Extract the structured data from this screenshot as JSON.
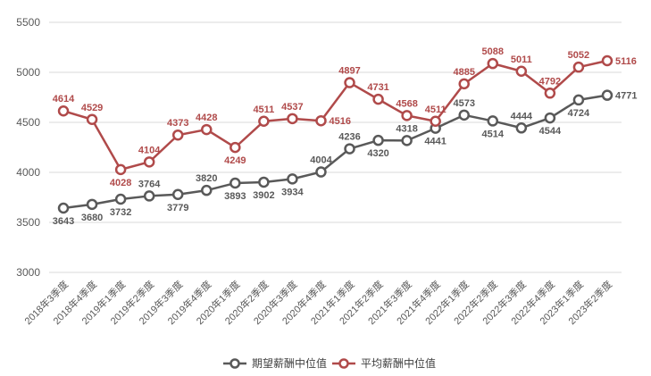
{
  "chart_data": {
    "type": "line",
    "categories": [
      "2018年3季度",
      "2018年4季度",
      "2019年1季度",
      "2019年2季度",
      "2019年3季度",
      "2019年4季度",
      "2020年1季度",
      "2020年2季度",
      "2020年3季度",
      "2020年4季度",
      "2021年1季度",
      "2021年2季度",
      "2021年3季度",
      "2021年4季度",
      "2022年1季度",
      "2022年2季度",
      "2022年3季度",
      "2022年4季度",
      "2023年1季度",
      "2023年2季度"
    ],
    "series": [
      {
        "name": "期望薪酬中位值",
        "color": "#595959",
        "values": [
          3643,
          3680,
          3732,
          3764,
          3779,
          3820,
          3893,
          3902,
          3934,
          4004,
          4236,
          4320,
          4318,
          4441,
          4573,
          4514,
          4444,
          4544,
          4724,
          4771
        ]
      },
      {
        "name": "平均薪酬中位值",
        "color": "#b04a4a",
        "values": [
          4614,
          4529,
          4028,
          4104,
          4373,
          4428,
          4249,
          4511,
          4537,
          4516,
          4897,
          4731,
          4568,
          4511,
          4885,
          5088,
          5011,
          4792,
          5052,
          5116
        ]
      }
    ],
    "ylim": [
      3000,
      5500
    ],
    "yticks": [
      3000,
      3500,
      4000,
      4500,
      5000,
      5500
    ],
    "grid": true,
    "legend": "bottom-center",
    "title": "",
    "xlabel": "",
    "ylabel": ""
  }
}
